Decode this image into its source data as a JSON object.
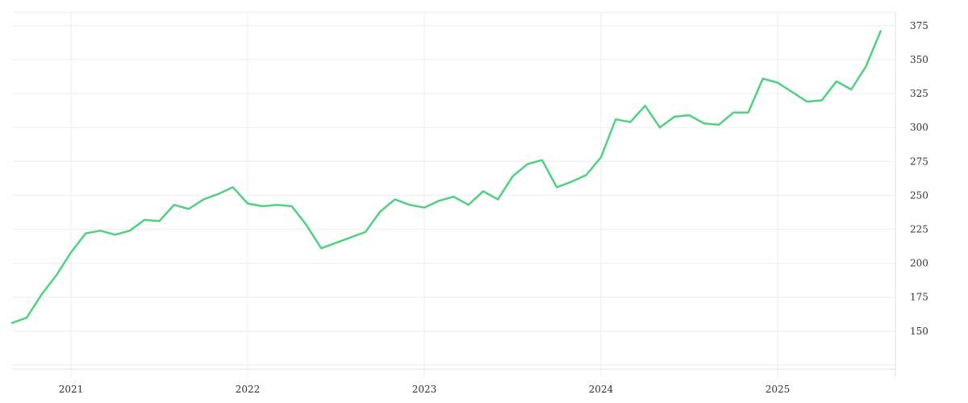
{
  "chart_data": {
    "type": "line",
    "title": "",
    "xlabel": "",
    "ylabel": "",
    "grid": true,
    "legend": "none",
    "line_color": "#4fd17f",
    "x_ticks": [
      "2021",
      "2022",
      "2023",
      "2024",
      "2025"
    ],
    "y_ticks": [
      150,
      175,
      200,
      225,
      250,
      275,
      300,
      325,
      350,
      375
    ],
    "xlim": [
      "2020-09",
      "2025-09"
    ],
    "ylim": [
      122,
      385
    ],
    "series": [
      {
        "x": [
          "2020-09",
          "2020-10",
          "2020-11",
          "2020-12",
          "2021-01",
          "2021-02",
          "2021-03",
          "2021-04",
          "2021-05",
          "2021-06",
          "2021-07",
          "2021-08",
          "2021-09",
          "2021-10",
          "2021-11",
          "2021-12",
          "2022-01",
          "2022-02",
          "2022-03",
          "2022-04",
          "2022-05",
          "2022-06",
          "2022-07",
          "2022-08",
          "2022-09",
          "2022-10",
          "2022-11",
          "2022-12",
          "2023-01",
          "2023-02",
          "2023-03",
          "2023-04",
          "2023-05",
          "2023-06",
          "2023-07",
          "2023-08",
          "2023-09",
          "2023-10",
          "2023-11",
          "2023-12",
          "2024-01",
          "2024-02",
          "2024-03",
          "2024-04",
          "2024-05",
          "2024-06",
          "2024-07",
          "2024-08",
          "2024-09",
          "2024-10",
          "2024-11",
          "2024-12",
          "2025-01",
          "2025-02",
          "2025-03",
          "2025-04",
          "2025-05",
          "2025-06",
          "2025-07",
          "2025-08"
        ],
        "values": [
          156,
          160,
          177,
          191,
          208,
          222,
          224,
          221,
          224,
          232,
          231,
          243,
          240,
          247,
          251,
          256,
          244,
          242,
          243,
          242,
          228,
          211,
          215,
          219,
          223,
          238,
          247,
          243,
          241,
          246,
          249,
          243,
          253,
          247,
          264,
          273,
          276,
          256,
          260,
          265,
          278,
          306,
          304,
          316,
          300,
          308,
          309,
          303,
          302,
          311,
          311,
          336,
          333,
          326,
          319,
          320,
          334,
          328,
          345,
          371
        ]
      }
    ]
  }
}
